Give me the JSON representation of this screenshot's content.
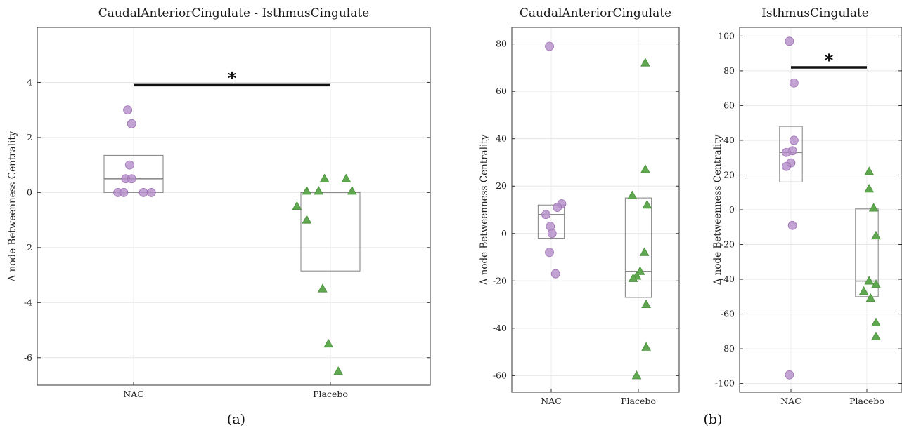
{
  "panel_labels": [
    "(a)",
    "(b)"
  ],
  "chart_data": [
    {
      "type": "scatter",
      "title": "CaudalAnteriorCingulate - IsthmusCingulate",
      "ylabel": "Δ node Betweenness Centrality",
      "categories": [
        "NAC",
        "Placebo"
      ],
      "ylim": [
        -7,
        6
      ],
      "yticks": [
        -6,
        -4,
        -2,
        0,
        2,
        4
      ],
      "grid": true,
      "significance": {
        "label": "*",
        "y": 3.9,
        "between": [
          "NAC",
          "Placebo"
        ]
      },
      "boxes": [
        {
          "q1": 0.0,
          "median": 0.5,
          "q3": 1.35
        },
        {
          "q1": -2.85,
          "median": 0.0,
          "q3": 0.02
        }
      ],
      "series": [
        {
          "marker": "circle",
          "color": "#b48cc8",
          "points": [
            {
              "x": 0.97,
              "y": 3.0
            },
            {
              "x": 0.99,
              "y": 2.5
            },
            {
              "x": 0.98,
              "y": 1.0
            },
            {
              "x": 0.96,
              "y": 0.5
            },
            {
              "x": 0.99,
              "y": 0.5
            },
            {
              "x": 0.92,
              "y": 0.0
            },
            {
              "x": 0.95,
              "y": 0.0
            },
            {
              "x": 1.05,
              "y": 0.0
            },
            {
              "x": 1.09,
              "y": 0.0
            }
          ]
        },
        {
          "marker": "triangle",
          "color": "#5fa84f",
          "points": [
            {
              "x": 1.97,
              "y": 0.5
            },
            {
              "x": 2.08,
              "y": 0.5
            },
            {
              "x": 1.88,
              "y": 0.05
            },
            {
              "x": 1.94,
              "y": 0.05
            },
            {
              "x": 2.11,
              "y": 0.05
            },
            {
              "x": 1.83,
              "y": -0.5
            },
            {
              "x": 1.88,
              "y": -1.0
            },
            {
              "x": 1.96,
              "y": -3.5
            },
            {
              "x": 1.99,
              "y": -5.5
            },
            {
              "x": 2.04,
              "y": -6.5
            }
          ]
        }
      ]
    },
    {
      "type": "scatter",
      "title": "CaudalAnteriorCingulate",
      "ylabel": "Δ node Betweenness Centrality",
      "categories": [
        "NAC",
        "Placebo"
      ],
      "ylim": [
        -67,
        87
      ],
      "yticks": [
        -60,
        -40,
        -20,
        0,
        20,
        40,
        60,
        80
      ],
      "grid": true,
      "boxes": [
        {
          "q1": -2,
          "median": 8,
          "q3": 12
        },
        {
          "q1": -27,
          "median": -16,
          "q3": 15
        }
      ],
      "series": [
        {
          "marker": "circle",
          "color": "#b48cc8",
          "points": [
            {
              "x": 0.98,
              "y": 79
            },
            {
              "x": 1.12,
              "y": 12.5
            },
            {
              "x": 1.07,
              "y": 11
            },
            {
              "x": 0.94,
              "y": 8
            },
            {
              "x": 0.99,
              "y": 3
            },
            {
              "x": 1.01,
              "y": 0
            },
            {
              "x": 0.98,
              "y": -8
            },
            {
              "x": 1.05,
              "y": -17
            }
          ]
        },
        {
          "marker": "triangle",
          "color": "#5fa84f",
          "points": [
            {
              "x": 2.08,
              "y": 72
            },
            {
              "x": 2.08,
              "y": 27
            },
            {
              "x": 1.93,
              "y": 16
            },
            {
              "x": 2.1,
              "y": 12
            },
            {
              "x": 2.07,
              "y": -8
            },
            {
              "x": 2.02,
              "y": -16
            },
            {
              "x": 1.98,
              "y": -18
            },
            {
              "x": 1.94,
              "y": -19
            },
            {
              "x": 2.09,
              "y": -30
            },
            {
              "x": 2.09,
              "y": -48
            },
            {
              "x": 1.98,
              "y": -60
            }
          ]
        }
      ]
    },
    {
      "type": "scatter",
      "title": "IsthmusCingulate",
      "ylabel": "Δ node Betweenness Centrality",
      "categories": [
        "NAC",
        "Placebo"
      ],
      "ylim": [
        -105,
        105
      ],
      "yticks": [
        -100,
        -80,
        -60,
        -40,
        -20,
        0,
        20,
        40,
        60,
        80,
        100
      ],
      "grid": true,
      "significance": {
        "label": "*",
        "y": 82,
        "between": [
          "NAC",
          "Placebo"
        ]
      },
      "boxes": [
        {
          "q1": 16,
          "median": 33,
          "q3": 48
        },
        {
          "q1": -50,
          "median": -41,
          "q3": 0.5
        }
      ],
      "series": [
        {
          "marker": "circle",
          "color": "#b48cc8",
          "points": [
            {
              "x": 0.98,
              "y": 97
            },
            {
              "x": 1.04,
              "y": 73
            },
            {
              "x": 1.04,
              "y": 40
            },
            {
              "x": 1.02,
              "y": 34
            },
            {
              "x": 0.94,
              "y": 33
            },
            {
              "x": 1.0,
              "y": 27
            },
            {
              "x": 0.94,
              "y": 25
            },
            {
              "x": 1.02,
              "y": -9
            },
            {
              "x": 0.98,
              "y": -95
            }
          ]
        },
        {
          "marker": "triangle",
          "color": "#5fa84f",
          "points": [
            {
              "x": 2.03,
              "y": 22
            },
            {
              "x": 2.03,
              "y": 12
            },
            {
              "x": 2.09,
              "y": 1
            },
            {
              "x": 2.12,
              "y": -15
            },
            {
              "x": 2.03,
              "y": -41
            },
            {
              "x": 2.12,
              "y": -43
            },
            {
              "x": 1.96,
              "y": -47
            },
            {
              "x": 2.05,
              "y": -51
            },
            {
              "x": 2.12,
              "y": -65
            },
            {
              "x": 2.12,
              "y": -73
            }
          ]
        }
      ]
    }
  ]
}
